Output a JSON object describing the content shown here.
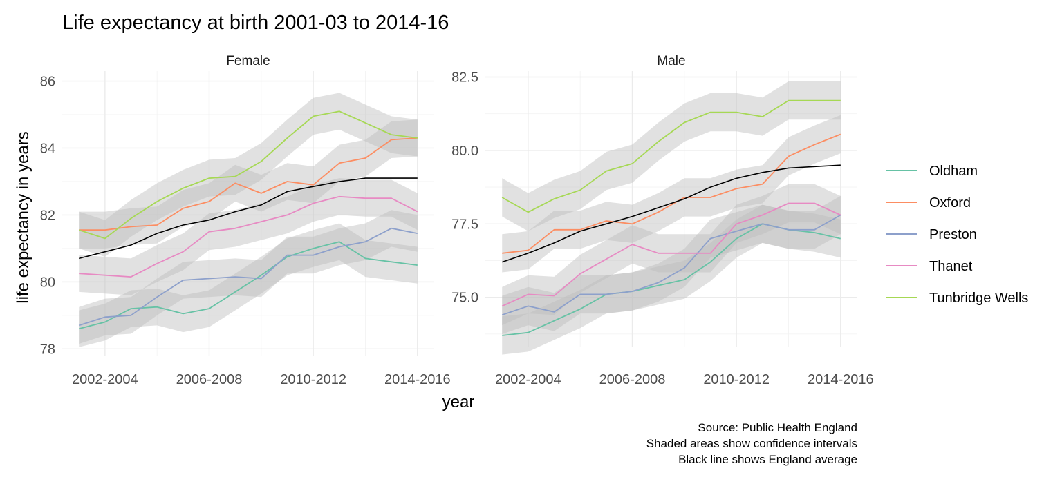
{
  "chart_data": {
    "type": "line",
    "title": "Life expectancy at birth 2001-03 to 2014-16",
    "xlabel": "year",
    "ylabel": "life expectancy in years",
    "x": [
      "2001-2003",
      "2002-2004",
      "2003-2005",
      "2004-2006",
      "2005-2007",
      "2006-2008",
      "2007-2009",
      "2008-2010",
      "2009-2011",
      "2010-2012",
      "2011-2013",
      "2012-2014",
      "2013-2015",
      "2014-2016"
    ],
    "xticks": [
      "2002-2004",
      "2006-2008",
      "2010-2012",
      "2014-2016"
    ],
    "legend": {
      "placement": "right",
      "entries": [
        "Oldham",
        "Oxford",
        "Preston",
        "Thanet",
        "Tunbridge Wells"
      ]
    },
    "colors": {
      "Oldham": "#66c2a5",
      "Oxford": "#fc8d62",
      "Preston": "#8da0cb",
      "Thanet": "#e78ac3",
      "Tunbridge Wells": "#a6d854",
      "England": "#000000",
      "ribbon": "#bdbdbd"
    },
    "ribbon_note": "Shaded areas show confidence intervals",
    "caption": [
      "Source: Public Health England",
      "Shaded areas show confidence intervals",
      "Black line shows England average"
    ],
    "panels": [
      {
        "name": "Female",
        "ylim": [
          77.8,
          86.3
        ],
        "yticks": [
          78,
          80,
          82,
          84,
          86
        ],
        "ci": 0.55,
        "series": [
          {
            "name": "Oldham",
            "values": [
              78.6,
              78.8,
              79.2,
              79.25,
              79.05,
              79.2,
              79.7,
              80.2,
              80.75,
              81.0,
              81.2,
              80.7,
              80.6,
              80.5
            ]
          },
          {
            "name": "Oxford",
            "values": [
              81.55,
              81.55,
              81.65,
              81.7,
              82.2,
              82.4,
              82.95,
              82.65,
              83.0,
              82.9,
              83.55,
              83.7,
              84.25,
              84.3
            ]
          },
          {
            "name": "Preston",
            "values": [
              78.7,
              78.95,
              79.0,
              79.55,
              80.05,
              80.1,
              80.15,
              80.1,
              80.8,
              80.8,
              81.05,
              81.2,
              81.6,
              81.45
            ]
          },
          {
            "name": "Thanet",
            "values": [
              80.25,
              80.2,
              80.15,
              80.55,
              80.9,
              81.5,
              81.6,
              81.8,
              82.0,
              82.35,
              82.55,
              82.5,
              82.5,
              82.1
            ]
          },
          {
            "name": "Tunbridge Wells",
            "values": [
              81.55,
              81.3,
              81.9,
              82.4,
              82.8,
              83.1,
              83.15,
              83.6,
              84.3,
              84.95,
              85.1,
              84.75,
              84.4,
              84.3
            ]
          },
          {
            "name": "England",
            "values": [
              80.7,
              80.9,
              81.1,
              81.45,
              81.7,
              81.85,
              82.1,
              82.3,
              82.7,
              82.85,
              83.0,
              83.1,
              83.1,
              83.1
            ]
          }
        ]
      },
      {
        "name": "Male",
        "ylim": [
          73.3,
          82.7
        ],
        "yticks": [
          75.0,
          77.5,
          80.0,
          82.5
        ],
        "ytick_labels": [
          "75.0",
          "77.5",
          "80.0",
          "82.5"
        ],
        "ci": 0.65,
        "series": [
          {
            "name": "Oldham",
            "values": [
              73.7,
              73.8,
              74.2,
              74.6,
              75.1,
              75.2,
              75.4,
              75.6,
              76.2,
              77.0,
              77.5,
              77.3,
              77.2,
              77.0
            ]
          },
          {
            "name": "Oxford",
            "values": [
              76.5,
              76.6,
              77.3,
              77.3,
              77.6,
              77.5,
              77.9,
              78.4,
              78.4,
              78.7,
              78.85,
              79.8,
              80.2,
              80.55
            ]
          },
          {
            "name": "Preston",
            "values": [
              74.4,
              74.7,
              74.5,
              75.1,
              75.1,
              75.2,
              75.5,
              76.0,
              77.0,
              77.25,
              77.5,
              77.3,
              77.3,
              77.8
            ]
          },
          {
            "name": "Thanet",
            "values": [
              74.7,
              75.1,
              75.05,
              75.8,
              76.3,
              76.8,
              76.5,
              76.5,
              76.5,
              77.5,
              77.8,
              78.2,
              78.2,
              77.8
            ]
          },
          {
            "name": "Tunbridge Wells",
            "values": [
              78.4,
              77.9,
              78.35,
              78.65,
              79.3,
              79.55,
              80.3,
              80.95,
              81.3,
              81.3,
              81.15,
              81.7,
              81.7,
              81.7
            ]
          },
          {
            "name": "England",
            "values": [
              76.2,
              76.5,
              76.85,
              77.25,
              77.5,
              77.75,
              78.05,
              78.35,
              78.75,
              79.05,
              79.25,
              79.4,
              79.45,
              79.5
            ]
          }
        ]
      }
    ]
  }
}
